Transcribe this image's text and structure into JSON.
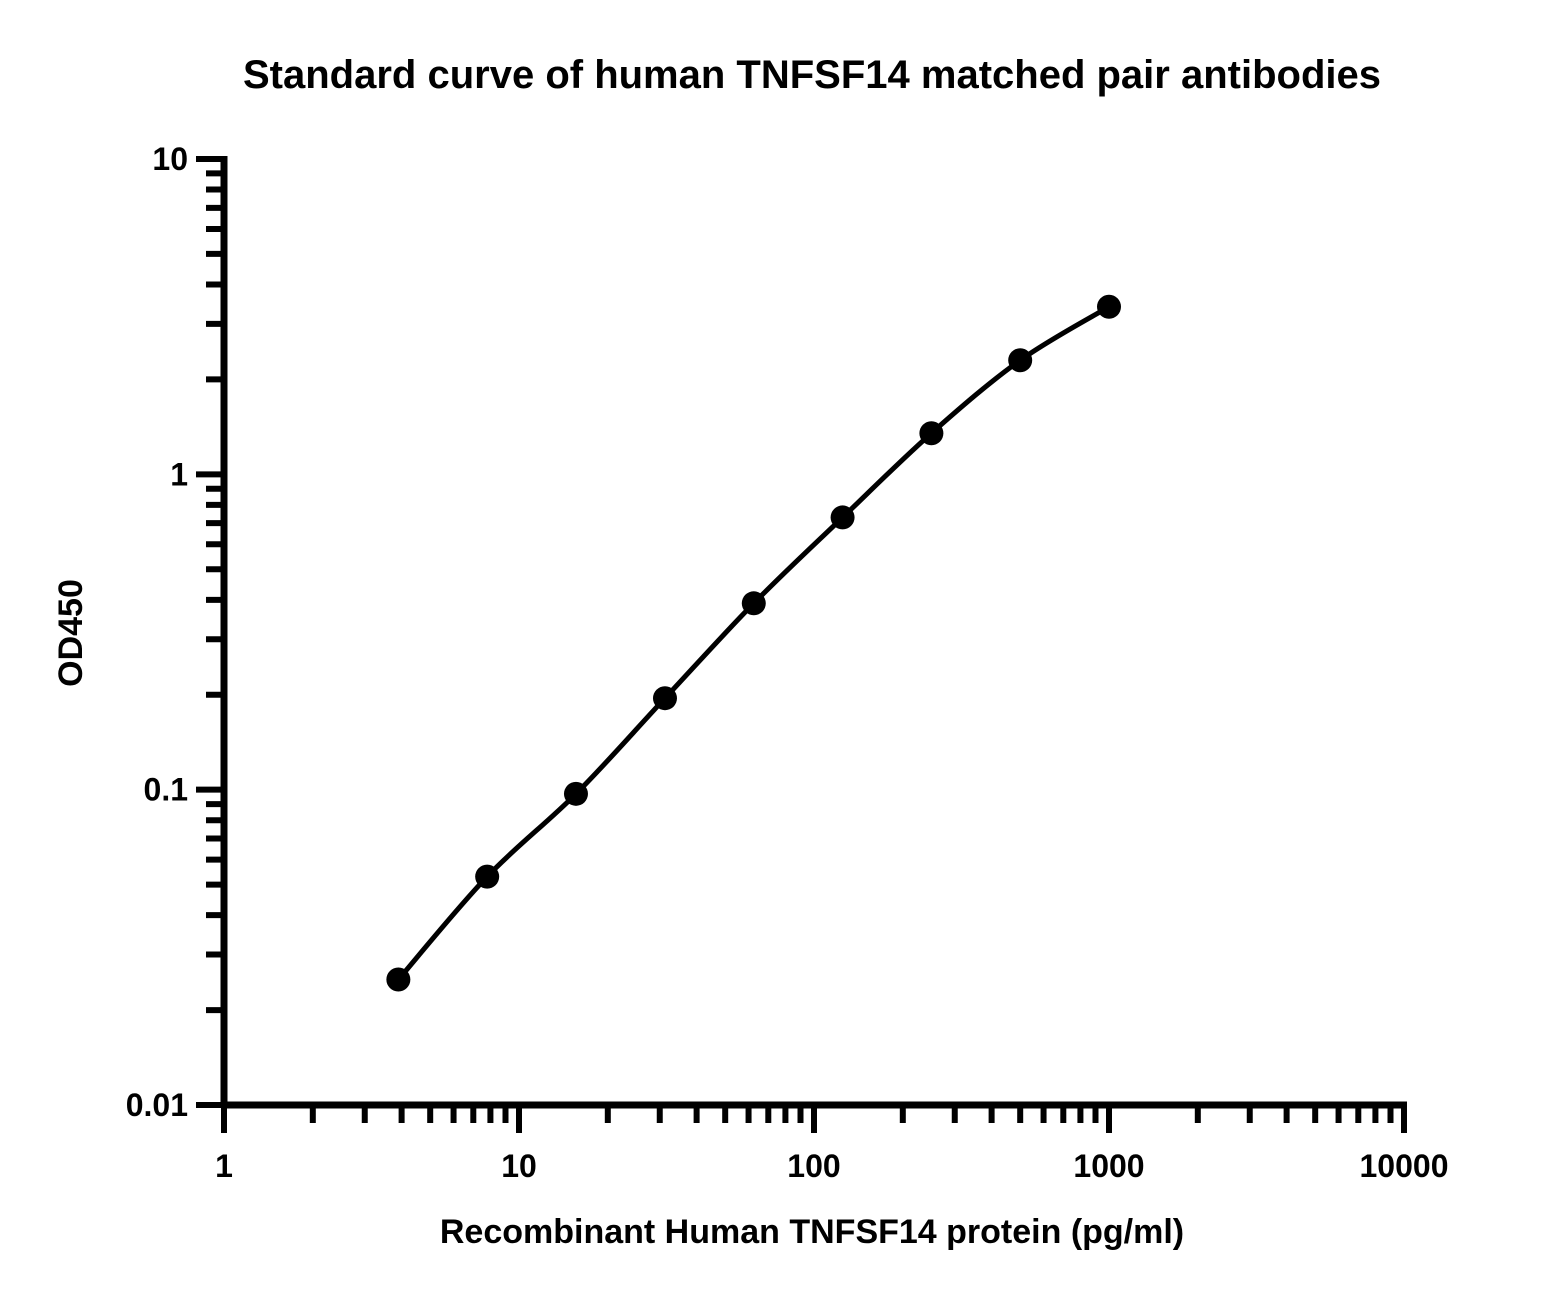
{
  "chart_data": {
    "type": "scatter",
    "title": "Standard curve of human TNFSF14 matched pair antibodies",
    "xlabel": "Recombinant Human TNFSF14 protein (pg/ml)",
    "ylabel": "OD450",
    "xscale": "log",
    "yscale": "log",
    "xlim": [
      1,
      10000
    ],
    "ylim": [
      0.01,
      10
    ],
    "x_ticks": [
      1,
      10,
      100,
      1000,
      10000
    ],
    "x_tick_labels": [
      "1",
      "10",
      "100",
      "1000",
      "10000"
    ],
    "y_ticks": [
      0.01,
      0.1,
      1,
      10
    ],
    "y_tick_labels": [
      "0.01",
      "0.1",
      "1",
      "10"
    ],
    "grid": false,
    "legend": "none",
    "series": [
      {
        "x": [
          3.9,
          7.8,
          15.6,
          31.25,
          62.5,
          125,
          250,
          500,
          1000
        ],
        "y": [
          0.025,
          0.053,
          0.097,
          0.195,
          0.39,
          0.73,
          1.35,
          2.3,
          3.4
        ],
        "marker": "circle",
        "fit_line": true,
        "color": "#000000"
      }
    ]
  }
}
